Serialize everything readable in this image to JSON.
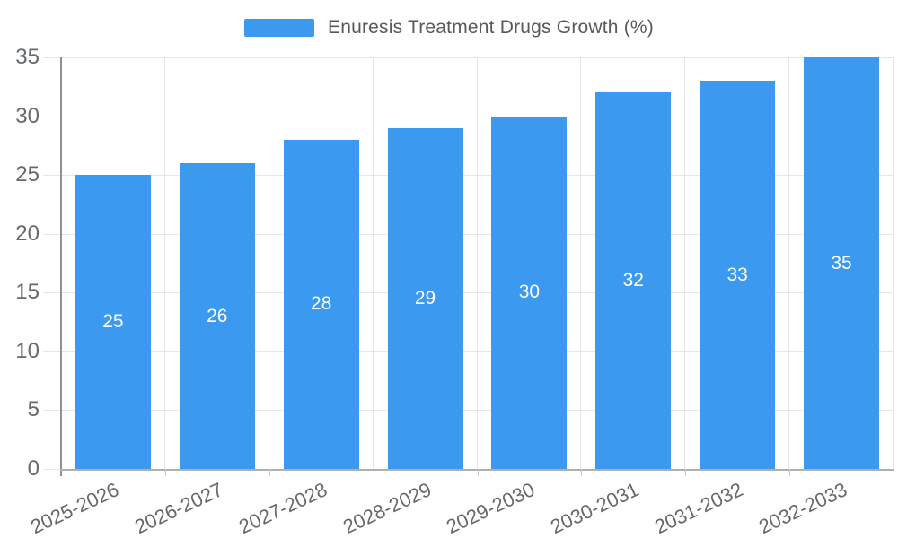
{
  "chart_data": {
    "type": "bar",
    "title": "Enuresis Treatment Drugs Growth (%)",
    "legend": {
      "label": "Enuresis Treatment Drugs Growth (%)",
      "position": "top"
    },
    "categories": [
      "2025-2026",
      "2026-2027",
      "2027-2028",
      "2028-2029",
      "2029-2030",
      "2030-2031",
      "2031-2032",
      "2032-2033"
    ],
    "values": [
      25,
      26,
      28,
      29,
      30,
      32,
      33,
      35
    ],
    "value_labels": [
      "25",
      "26",
      "28",
      "29",
      "30",
      "32",
      "33",
      "35"
    ],
    "xlabel": "",
    "ylabel": "",
    "ylim": [
      0,
      35
    ],
    "yticks": [
      0,
      5,
      10,
      15,
      20,
      25,
      30,
      35
    ],
    "grid": "on",
    "colors": {
      "bar": "#3b99ef",
      "bar_value_text": "#ffffff",
      "axis_text": "#666a6d",
      "gridline": "#e6e6e6",
      "y_axis_line": "#909090",
      "x_axis_line": "#b3aeab",
      "background": "#ffffff"
    }
  }
}
